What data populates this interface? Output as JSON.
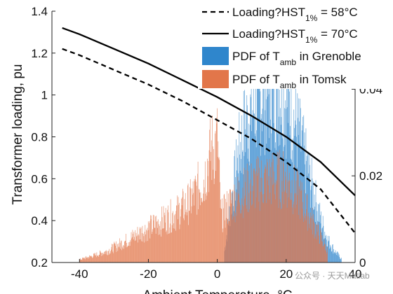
{
  "chart_data": {
    "type": "line",
    "title": "",
    "xlabel": "Ambient Temperature, °C",
    "ylabel": "Transformer loading, pu",
    "xlim": [
      -48,
      40
    ],
    "ylim": [
      0.2,
      1.4
    ],
    "y2lim": [
      0,
      0.058
    ],
    "x_ticks": [
      -40,
      -20,
      0,
      20,
      40
    ],
    "y_ticks": [
      0.2,
      0.4,
      0.6,
      0.8,
      1.0,
      1.2,
      1.4
    ],
    "y_tick_labels": [
      "0.2",
      "0.4",
      "0.6",
      "0.8",
      "1",
      "1.2",
      "1.4"
    ],
    "y2_ticks": [
      0,
      0.02,
      0.04
    ],
    "y2_tick_labels": [
      "0",
      "0.02",
      "0.04"
    ],
    "grid": false,
    "legend_position": "top-right",
    "series": [
      {
        "name_prefix": "Loading?HST",
        "name_sub": "1%",
        "name_suffix": " = 58°C",
        "style": "dashed",
        "color": "#000000",
        "x": [
          -45,
          -40,
          -30,
          -20,
          -10,
          0,
          10,
          20,
          30,
          40
        ],
        "y": [
          1.22,
          1.19,
          1.12,
          1.05,
          0.97,
          0.88,
          0.79,
          0.68,
          0.55,
          0.34
        ]
      },
      {
        "name_prefix": "Loading?HST",
        "name_sub": "1%",
        "name_suffix": " = 70°C",
        "style": "solid",
        "color": "#000000",
        "x": [
          -45,
          -40,
          -30,
          -20,
          -10,
          0,
          10,
          20,
          30,
          40
        ],
        "y": [
          1.32,
          1.29,
          1.22,
          1.15,
          1.07,
          0.99,
          0.9,
          0.8,
          0.68,
          0.52
        ]
      }
    ],
    "histograms": [
      {
        "name_prefix": "PDF of T",
        "name_sub": "amb",
        "name_suffix": " in Grenoble",
        "color": "#2f86cc",
        "axis": "right",
        "x": [
          2,
          4,
          6,
          8,
          10,
          12,
          14,
          16,
          18,
          20,
          22,
          24,
          26,
          28,
          30,
          32,
          34,
          36
        ],
        "y": [
          0.003,
          0.016,
          0.028,
          0.036,
          0.04,
          0.043,
          0.045,
          0.046,
          0.046,
          0.043,
          0.038,
          0.032,
          0.025,
          0.018,
          0.011,
          0.006,
          0.003,
          0.001
        ]
      },
      {
        "name_prefix": "PDF of T",
        "name_sub": "amb",
        "name_suffix": " in Tomsk",
        "color": "#e2764a",
        "axis": "right",
        "x": [
          -40,
          -36,
          -32,
          -28,
          -24,
          -20,
          -16,
          -12,
          -8,
          -4,
          -2,
          0,
          1,
          4,
          8,
          12,
          16,
          20,
          24,
          28,
          32
        ],
        "y": [
          0.0008,
          0.0018,
          0.003,
          0.005,
          0.007,
          0.009,
          0.011,
          0.013,
          0.016,
          0.022,
          0.029,
          0.032,
          0.012,
          0.016,
          0.019,
          0.021,
          0.022,
          0.022,
          0.017,
          0.01,
          0.003
        ]
      }
    ],
    "watermark": "公众号 · 天天Matlab"
  }
}
